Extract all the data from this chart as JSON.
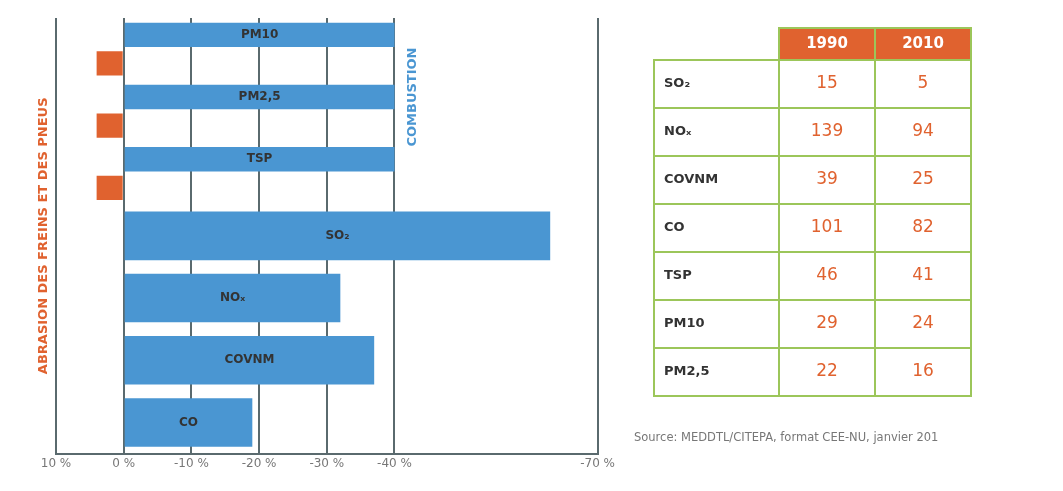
{
  "chart_data": [
    {
      "type": "bar",
      "orientation": "horizontal",
      "categories": [
        "PM10",
        "PM2,5",
        "TSP",
        "SO₂",
        "NOₓ",
        "COVNM",
        "CO"
      ],
      "series": [
        {
          "name": "COMBUSTION",
          "color": "#4a96d2",
          "values": [
            -40,
            -40,
            -40,
            -63,
            -32,
            -37,
            -19
          ]
        },
        {
          "name": "ABRASION DES FREINS ET DES PNEUS",
          "color": "#e0622f",
          "values": [
            4,
            4,
            4,
            null,
            null,
            null,
            null
          ]
        }
      ],
      "xlim": [
        10,
        -70
      ],
      "xticks": [
        {
          "value": 10,
          "label": "10 %"
        },
        {
          "value": 0,
          "label": "0 %"
        },
        {
          "value": -10,
          "label": "-10 %"
        },
        {
          "value": -20,
          "label": "-20 %"
        },
        {
          "value": -30,
          "label": "-30 %"
        },
        {
          "value": -40,
          "label": "-40 %"
        },
        {
          "value": -70,
          "label": "-70 %"
        }
      ],
      "grid": "x",
      "legend": false
    },
    {
      "type": "heatmap",
      "categories": [
        "1990",
        "2010"
      ],
      "y_categories": [
        "SO₂",
        "NOₓ",
        "COVNM",
        "CO",
        "TSP",
        "PM10",
        "PM2,5"
      ],
      "cells": [
        [
          15,
          5
        ],
        [
          139,
          94
        ],
        [
          39,
          25
        ],
        [
          101,
          82
        ],
        [
          46,
          41
        ],
        [
          29,
          24
        ],
        [
          22,
          16
        ]
      ],
      "data_labels": true,
      "annotations": [
        "Source: MEDDTL/CITEPA, format CEE-NU, janvier 201"
      ]
    }
  ]
}
